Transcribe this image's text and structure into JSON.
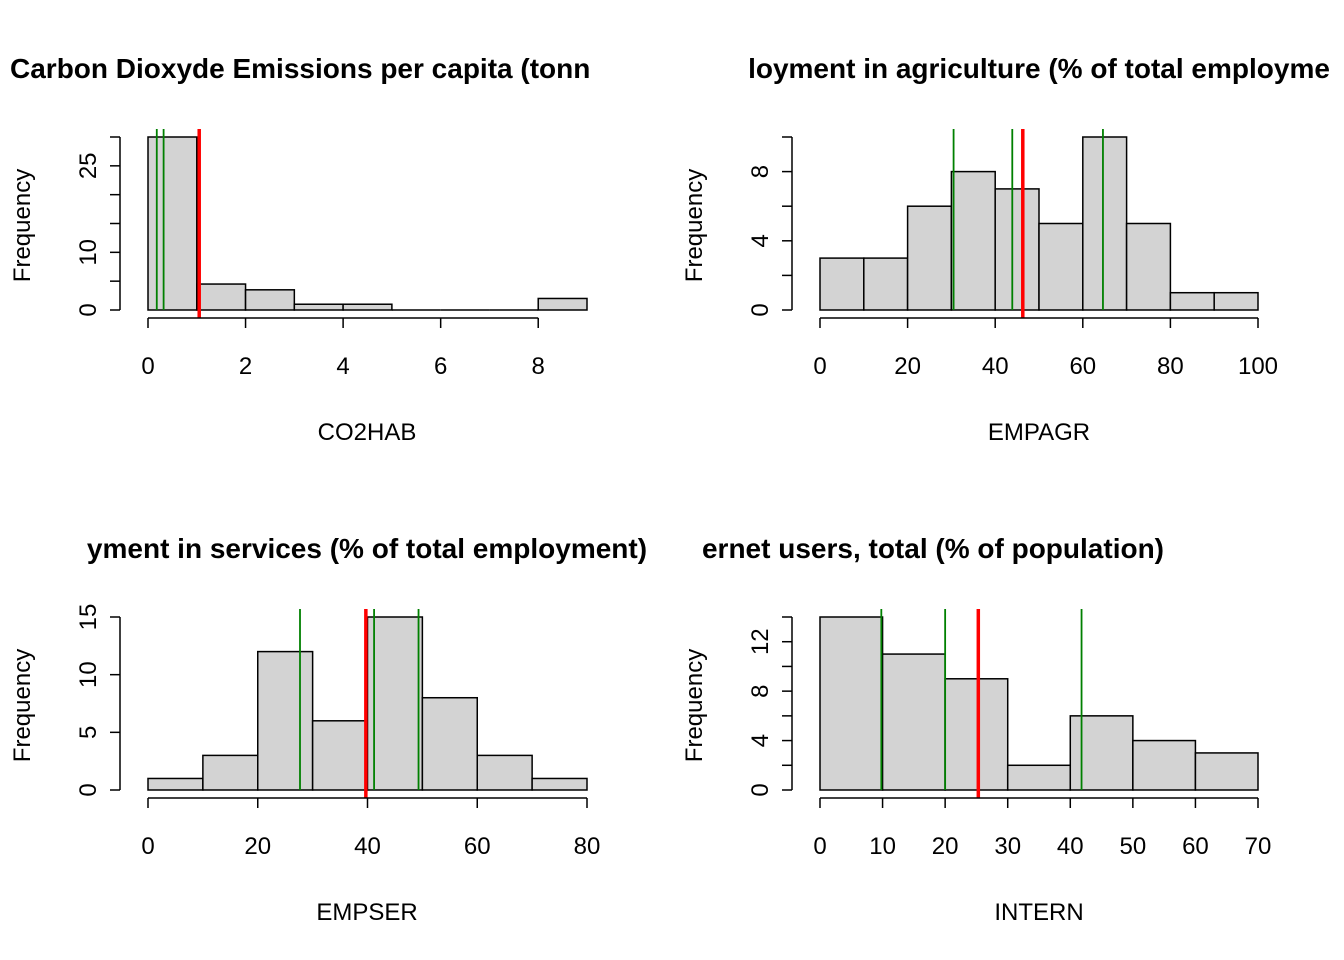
{
  "chart_data": [
    {
      "type": "bar",
      "subtype": "histogram",
      "title": "Carbon Dioxyde Emissions per capita (tonn",
      "xlabel": "CO2HAB",
      "ylabel": "Frequency",
      "xlim": [
        0,
        9
      ],
      "ylim": [
        0,
        30
      ],
      "xticks": [
        "0",
        "2",
        "4",
        "6",
        "8"
      ],
      "yticks": [
        "0",
        "10",
        "25"
      ],
      "bins": [
        [
          0,
          1
        ],
        [
          1,
          2
        ],
        [
          2,
          3
        ],
        [
          3,
          4
        ],
        [
          4,
          5
        ],
        [
          5,
          6
        ],
        [
          6,
          7
        ],
        [
          7,
          8
        ],
        [
          8,
          9
        ]
      ],
      "values": [
        30,
        4.5,
        3.5,
        1,
        1,
        0,
        0,
        0,
        2
      ],
      "vlines": [
        {
          "x": 0.18,
          "color": "#008000"
        },
        {
          "x": 0.32,
          "color": "#008000"
        },
        {
          "x": 1.05,
          "color": "#ff0000"
        }
      ]
    },
    {
      "type": "bar",
      "subtype": "histogram",
      "title": "loyment in agriculture (% of total employme",
      "xlabel": "EMPAGR",
      "ylabel": "Frequency",
      "xlim": [
        0,
        100
      ],
      "ylim": [
        0,
        10
      ],
      "xticks": [
        "0",
        "20",
        "40",
        "60",
        "80",
        "100"
      ],
      "yticks": [
        "0",
        "4",
        "8"
      ],
      "bins": [
        [
          0,
          10
        ],
        [
          10,
          20
        ],
        [
          20,
          30
        ],
        [
          30,
          40
        ],
        [
          40,
          50
        ],
        [
          50,
          60
        ],
        [
          60,
          70
        ],
        [
          70,
          80
        ],
        [
          80,
          90
        ],
        [
          90,
          100
        ]
      ],
      "values": [
        3,
        3,
        6,
        8,
        7,
        5,
        10,
        5,
        1,
        1
      ],
      "vlines": [
        {
          "x": 30.5,
          "color": "#008000"
        },
        {
          "x": 43.9,
          "color": "#008000"
        },
        {
          "x": 64.6,
          "color": "#008000"
        },
        {
          "x": 46.3,
          "color": "#ff0000"
        }
      ]
    },
    {
      "type": "bar",
      "subtype": "histogram",
      "title": "yment in services (% of total employment)",
      "xlabel": "EMPSER",
      "ylabel": "Frequency",
      "xlim": [
        0,
        80
      ],
      "ylim": [
        0,
        15
      ],
      "xticks": [
        "0",
        "20",
        "40",
        "60",
        "80"
      ],
      "yticks": [
        "0",
        "5",
        "10",
        "15"
      ],
      "bins": [
        [
          0,
          10
        ],
        [
          10,
          20
        ],
        [
          20,
          30
        ],
        [
          30,
          40
        ],
        [
          40,
          50
        ],
        [
          50,
          60
        ],
        [
          60,
          70
        ],
        [
          70,
          80
        ]
      ],
      "values": [
        1,
        3,
        12,
        6,
        15,
        8,
        3,
        1
      ],
      "vlines": [
        {
          "x": 27.7,
          "color": "#008000"
        },
        {
          "x": 41.2,
          "color": "#008000"
        },
        {
          "x": 49.3,
          "color": "#008000"
        },
        {
          "x": 39.7,
          "color": "#ff0000"
        }
      ]
    },
    {
      "type": "bar",
      "subtype": "histogram",
      "title": "ernet users, total (% of population)",
      "xlabel": "INTERN",
      "ylabel": "Frequency",
      "xlim": [
        0,
        70
      ],
      "ylim": [
        0,
        14
      ],
      "xticks": [
        "0",
        "10",
        "20",
        "30",
        "40",
        "50",
        "60",
        "70"
      ],
      "yticks": [
        "0",
        "4",
        "8",
        "12"
      ],
      "bins": [
        [
          0,
          10
        ],
        [
          10,
          20
        ],
        [
          20,
          30
        ],
        [
          30,
          40
        ],
        [
          40,
          50
        ],
        [
          50,
          60
        ],
        [
          60,
          70
        ]
      ],
      "values": [
        14,
        11,
        9,
        2,
        6,
        4,
        3
      ],
      "vlines": [
        {
          "x": 9.8,
          "color": "#008000"
        },
        {
          "x": 20.0,
          "color": "#008000"
        },
        {
          "x": 41.8,
          "color": "#008000"
        },
        {
          "x": 25.3,
          "color": "#ff0000"
        }
      ]
    }
  ],
  "style": {
    "bar_fill": "#d3d3d3",
    "bar_stroke": "#000000",
    "quantile_line_color": "#008000",
    "mean_line_color": "#ff0000"
  }
}
